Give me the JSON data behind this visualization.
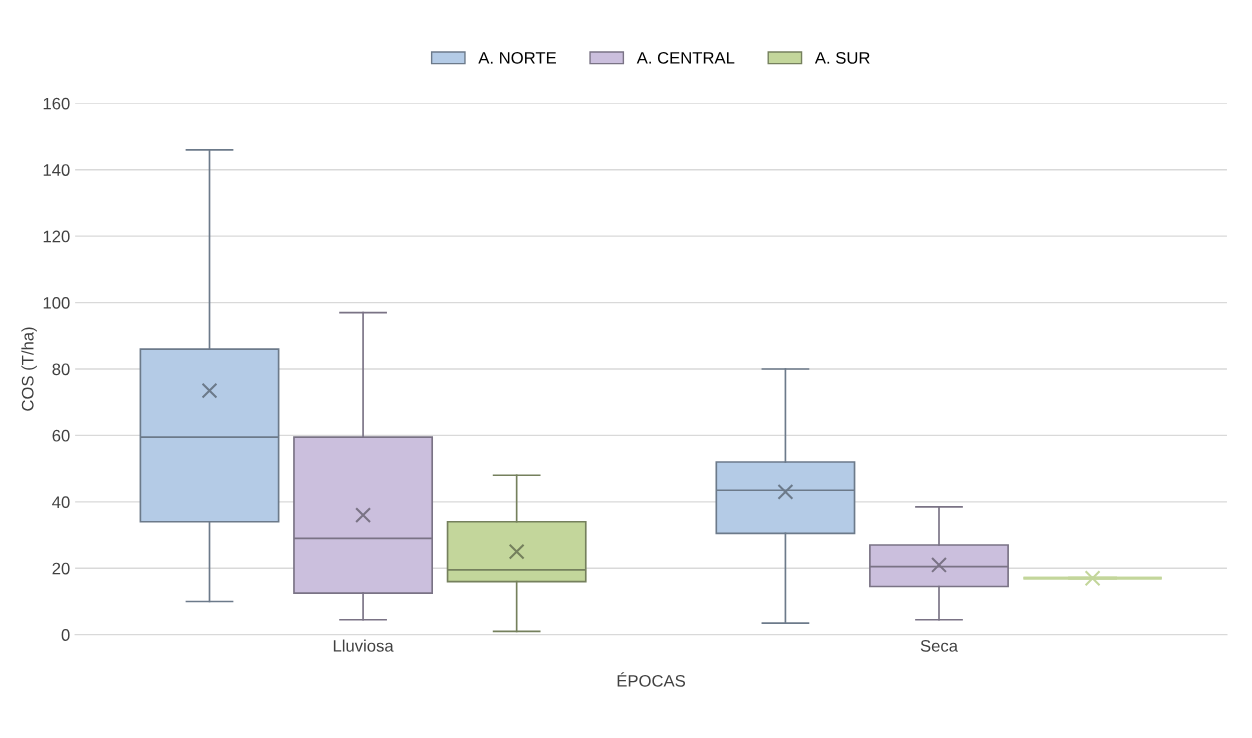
{
  "chart_data": {
    "type": "box",
    "xlabel": "ÉPOCAS",
    "ylabel": "COS (T/ha)",
    "categories": [
      "Lluviosa",
      "Seca"
    ],
    "series": [
      {
        "name": "A. NORTE",
        "color": "#b4cbe6",
        "boxes": [
          {
            "low": 10,
            "q1": 34,
            "median": 59.5,
            "q3": 86,
            "high": 146,
            "mean": 73.5
          },
          {
            "low": 3.5,
            "q1": 30.5,
            "median": 43.5,
            "q3": 52,
            "high": 80,
            "mean": 43
          }
        ]
      },
      {
        "name": "A. CENTRAL",
        "color": "#cbbfdd",
        "boxes": [
          {
            "low": 4.5,
            "q1": 12.5,
            "median": 29,
            "q3": 59.5,
            "high": 97,
            "mean": 36
          },
          {
            "low": 4.5,
            "q1": 14.5,
            "median": 20.5,
            "q3": 27,
            "high": 38.5,
            "mean": 21
          }
        ]
      },
      {
        "name": "A. SUR",
        "color": "#c3d69b",
        "boxes": [
          {
            "low": 1,
            "q1": 16,
            "median": 19.5,
            "q3": 34,
            "high": 48,
            "mean": 25
          },
          {
            "low": 17,
            "q1": 17,
            "median": 17,
            "q3": 17,
            "high": 17,
            "mean": 17
          }
        ]
      }
    ],
    "ylim": [
      0,
      160
    ],
    "yticks": [
      0,
      20,
      40,
      60,
      80,
      100,
      120,
      140,
      160
    ],
    "grid": "y",
    "legend": "top"
  }
}
